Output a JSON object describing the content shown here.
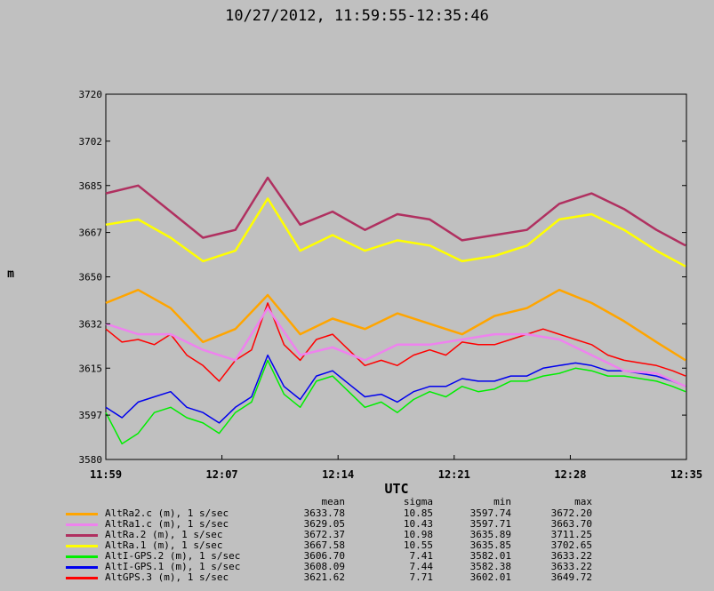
{
  "chart_data": {
    "type": "line",
    "title": "10/27/2012, 11:59:55-12:35:46",
    "xlabel": "UTC",
    "ylabel": "m",
    "x_ticks": [
      "11:59",
      "12:07",
      "12:14",
      "12:21",
      "12:28",
      "12:35"
    ],
    "x_range_minutes": [
      0,
      35.85
    ],
    "ylim": [
      3580,
      3720
    ],
    "y_ticks": [
      3580,
      3597,
      3615,
      3632,
      3650,
      3667,
      3685,
      3702,
      3720
    ],
    "grid": false,
    "legend_position": "bottom",
    "stats_headers": [
      "mean",
      "sigma",
      "min",
      "max"
    ],
    "draw_order": [
      6,
      5,
      4,
      0,
      3,
      1,
      2
    ],
    "series": [
      {
        "name": "AltRa2.c (m), 1 s/sec",
        "color": "#ffa500",
        "stats": [
          "3633.78",
          "10.85",
          "3597.74",
          "3672.20"
        ],
        "x": [
          0,
          2,
          4,
          6,
          8,
          10,
          12,
          14,
          16,
          18,
          20,
          22,
          24,
          26,
          28,
          30,
          32,
          34,
          35.8
        ],
        "values": [
          3640,
          3645,
          3638,
          3625,
          3630,
          3643,
          3628,
          3634,
          3630,
          3636,
          3632,
          3628,
          3635,
          3638,
          3645,
          3640,
          3633,
          3625,
          3618
        ]
      },
      {
        "name": "AltRa1.c (m), 1 s/sec",
        "color": "#ee82ee",
        "stats": [
          "3629.05",
          "10.43",
          "3597.71",
          "3663.70"
        ],
        "x": [
          0,
          2,
          4,
          6,
          8,
          10,
          12,
          14,
          16,
          18,
          20,
          22,
          24,
          26,
          28,
          30,
          32,
          34,
          35.8
        ],
        "values": [
          3632,
          3628,
          3628,
          3622,
          3618,
          3638,
          3620,
          3623,
          3618,
          3624,
          3624,
          3626,
          3628,
          3628,
          3626,
          3620,
          3614,
          3613,
          3608
        ]
      },
      {
        "name": "AltRa.2 (m), 1 s/sec",
        "color": "#b03060",
        "stats": [
          "3672.37",
          "10.98",
          "3635.89",
          "3711.25"
        ],
        "x": [
          0,
          2,
          4,
          6,
          8,
          10,
          12,
          14,
          16,
          18,
          20,
          22,
          24,
          26,
          28,
          30,
          32,
          34,
          35.8
        ],
        "values": [
          3682,
          3685,
          3675,
          3665,
          3668,
          3688,
          3670,
          3675,
          3668,
          3674,
          3672,
          3664,
          3666,
          3668,
          3678,
          3682,
          3676,
          3668,
          3662
        ]
      },
      {
        "name": "AltRa.1 (m), 1 s/sec",
        "color": "#ffff00",
        "stats": [
          "3667.58",
          "10.55",
          "3635.85",
          "3702.65"
        ],
        "x": [
          0,
          2,
          4,
          6,
          8,
          10,
          12,
          14,
          16,
          18,
          20,
          22,
          24,
          26,
          28,
          30,
          32,
          34,
          35.8
        ],
        "values": [
          3670,
          3672,
          3665,
          3656,
          3660,
          3680,
          3660,
          3666,
          3660,
          3664,
          3662,
          3656,
          3658,
          3662,
          3672,
          3674,
          3668,
          3660,
          3654
        ]
      },
      {
        "name": "AltI-GPS.2 (m), 1 s/sec",
        "color": "#00ee00",
        "stats": [
          "3606.70",
          "7.41",
          "3582.01",
          "3633.22"
        ],
        "x": [
          0,
          1,
          2,
          3,
          4,
          5,
          6,
          7,
          8,
          9,
          10,
          11,
          12,
          13,
          14,
          15,
          16,
          17,
          18,
          19,
          20,
          21,
          22,
          23,
          24,
          25,
          26,
          27,
          28,
          29,
          30,
          31,
          32,
          33,
          34,
          35,
          35.8
        ],
        "values": [
          3598,
          3586,
          3590,
          3598,
          3600,
          3596,
          3594,
          3590,
          3598,
          3602,
          3618,
          3605,
          3600,
          3610,
          3612,
          3606,
          3600,
          3602,
          3598,
          3603,
          3606,
          3604,
          3608,
          3606,
          3607,
          3610,
          3610,
          3612,
          3613,
          3615,
          3614,
          3612,
          3612,
          3611,
          3610,
          3608,
          3606
        ]
      },
      {
        "name": "AltI-GPS.1 (m), 1 s/sec",
        "color": "#0000ee",
        "stats": [
          "3608.09",
          "7.44",
          "3582.38",
          "3633.22"
        ],
        "x": [
          0,
          1,
          2,
          3,
          4,
          5,
          6,
          7,
          8,
          9,
          10,
          11,
          12,
          13,
          14,
          15,
          16,
          17,
          18,
          19,
          20,
          21,
          22,
          23,
          24,
          25,
          26,
          27,
          28,
          29,
          30,
          31,
          32,
          33,
          34,
          35,
          35.8
        ],
        "values": [
          3600,
          3596,
          3602,
          3604,
          3606,
          3600,
          3598,
          3594,
          3600,
          3604,
          3620,
          3608,
          3603,
          3612,
          3614,
          3609,
          3604,
          3605,
          3602,
          3606,
          3608,
          3608,
          3611,
          3610,
          3610,
          3612,
          3612,
          3615,
          3616,
          3617,
          3616,
          3614,
          3614,
          3613,
          3612,
          3610,
          3608
        ]
      },
      {
        "name": "AltGPS.3 (m), 1 s/sec",
        "color": "#ff0000",
        "stats": [
          "3621.62",
          "7.71",
          "3602.01",
          "3649.72"
        ],
        "x": [
          0,
          1,
          2,
          3,
          4,
          5,
          6,
          7,
          8,
          9,
          10,
          11,
          12,
          13,
          14,
          15,
          16,
          17,
          18,
          19,
          20,
          21,
          22,
          23,
          24,
          25,
          26,
          27,
          28,
          29,
          30,
          31,
          32,
          33,
          34,
          35,
          35.8
        ],
        "values": [
          3630,
          3625,
          3626,
          3624,
          3628,
          3620,
          3616,
          3610,
          3618,
          3622,
          3640,
          3624,
          3618,
          3626,
          3628,
          3622,
          3616,
          3618,
          3616,
          3620,
          3622,
          3620,
          3625,
          3624,
          3624,
          3626,
          3628,
          3630,
          3628,
          3626,
          3624,
          3620,
          3618,
          3617,
          3616,
          3614,
          3612
        ]
      }
    ]
  }
}
